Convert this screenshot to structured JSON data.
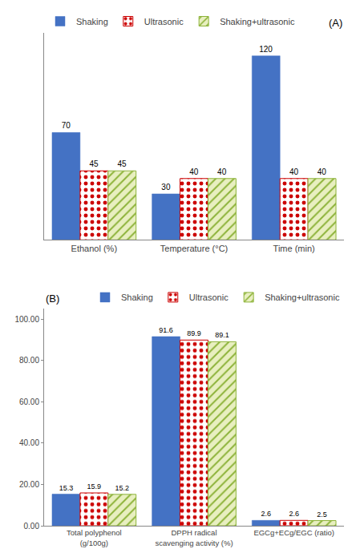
{
  "chart_data": [
    {
      "type": "bar",
      "title": "(A)",
      "categories": [
        "Ethanol (%)",
        "Temperature (°C)",
        "Time (min)"
      ],
      "series": [
        {
          "name": "Shaking",
          "color": "#4472C4",
          "values": [
            70,
            30,
            120
          ]
        },
        {
          "name": "Ultrasonic",
          "color": "#CC0000",
          "values": [
            45,
            40,
            40
          ]
        },
        {
          "name": "Shaking+ultrasonic",
          "color": "#8DB33A",
          "values": [
            45,
            40,
            40
          ]
        }
      ],
      "ylim": [
        0,
        135
      ],
      "yticks": [],
      "tick_labels": "x",
      "grid": false,
      "legend": "upper left",
      "data_labels": true
    },
    {
      "type": "bar",
      "title": "(B)",
      "categories": [
        "Total polyphenol\n(g/100g)",
        "DPPH radical\nscavenging activity (%)",
        "EGCg+ECg/EGC (ratio)"
      ],
      "series": [
        {
          "name": "Shaking",
          "color": "#4472C4",
          "values": [
            15.3,
            91.6,
            2.6
          ]
        },
        {
          "name": "Ultrasonic",
          "color": "#CC0000",
          "values": [
            15.9,
            89.9,
            2.6
          ]
        },
        {
          "name": "Shaking+ultrasonic",
          "color": "#8DB33A",
          "values": [
            15.2,
            89.1,
            2.5
          ]
        }
      ],
      "ylim": [
        0,
        105
      ],
      "yticks": [
        {
          "value": 0,
          "label": "0.00"
        },
        {
          "value": 20,
          "label": "20.00"
        },
        {
          "value": 40,
          "label": "40.00"
        },
        {
          "value": 60,
          "label": "60.00"
        },
        {
          "value": 80,
          "label": "80.00"
        },
        {
          "value": 100,
          "label": "100.00"
        }
      ],
      "grid": false,
      "legend": "upper right",
      "data_labels": true
    }
  ]
}
